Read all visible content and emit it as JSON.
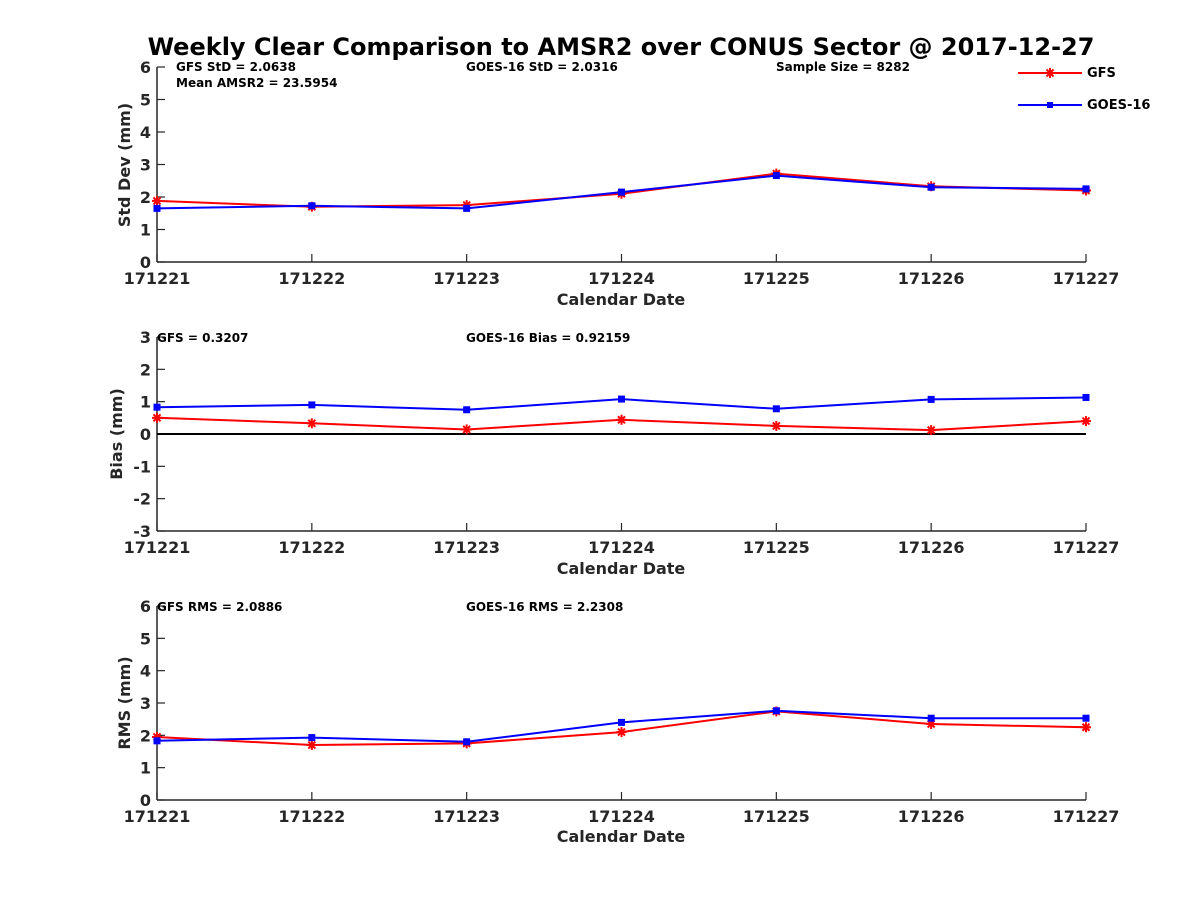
{
  "title": "Weekly Clear Comparison to AMSR2 over CONUS Sector @ 2017-12-27",
  "legend": [
    {
      "label": "GFS",
      "color": "#ff0000",
      "marker": "asterisk"
    },
    {
      "label": "GOES-16",
      "color": "#0000ff",
      "marker": "square"
    }
  ],
  "chart_data": [
    {
      "type": "line",
      "x": [
        "171221",
        "171222",
        "171223",
        "171224",
        "171225",
        "171226",
        "171227"
      ],
      "xlabel": "Calendar Date",
      "ylabel": "Std Dev (mm)",
      "ylim": [
        0,
        6
      ],
      "yticks": [
        0,
        1,
        2,
        3,
        4,
        5,
        6
      ],
      "zero_line": false,
      "annotations": [
        "GFS StD = 2.0638",
        "Mean AMSR2 = 23.5954",
        "GOES-16 StD = 2.0316",
        "Sample Size = 8282"
      ],
      "series": [
        {
          "name": "GFS",
          "color": "#ff0000",
          "marker": "asterisk",
          "values": [
            1.88,
            1.7,
            1.75,
            2.1,
            2.72,
            2.33,
            2.2
          ]
        },
        {
          "name": "GOES-16",
          "color": "#0000ff",
          "marker": "square",
          "values": [
            1.65,
            1.73,
            1.65,
            2.15,
            2.66,
            2.3,
            2.25
          ]
        }
      ]
    },
    {
      "type": "line",
      "x": [
        "171221",
        "171222",
        "171223",
        "171224",
        "171225",
        "171226",
        "171227"
      ],
      "xlabel": "Calendar Date",
      "ylabel": "Bias (mm)",
      "ylim": [
        -3,
        3
      ],
      "yticks": [
        -3,
        -2,
        -1,
        0,
        1,
        2,
        3
      ],
      "zero_line": true,
      "annotations": [
        "GFS = 0.3207",
        "GOES-16 Bias  = 0.92159"
      ],
      "series": [
        {
          "name": "GFS",
          "color": "#ff0000",
          "marker": "asterisk",
          "values": [
            0.5,
            0.33,
            0.14,
            0.44,
            0.25,
            0.12,
            0.4
          ]
        },
        {
          "name": "GOES-16",
          "color": "#0000ff",
          "marker": "square",
          "values": [
            0.83,
            0.9,
            0.75,
            1.08,
            0.78,
            1.07,
            1.13
          ]
        }
      ]
    },
    {
      "type": "line",
      "x": [
        "171221",
        "171222",
        "171223",
        "171224",
        "171225",
        "171226",
        "171227"
      ],
      "xlabel": "Calendar Date",
      "ylabel": "RMS (mm)",
      "ylim": [
        0,
        6
      ],
      "yticks": [
        0,
        1,
        2,
        3,
        4,
        5,
        6
      ],
      "zero_line": false,
      "annotations": [
        "GFS RMS = 2.0886",
        "GOES-16 RMS = 2.2308"
      ],
      "series": [
        {
          "name": "GFS",
          "color": "#ff0000",
          "marker": "asterisk",
          "values": [
            1.95,
            1.7,
            1.75,
            2.1,
            2.74,
            2.35,
            2.25
          ]
        },
        {
          "name": "GOES-16",
          "color": "#0000ff",
          "marker": "square",
          "values": [
            1.83,
            1.93,
            1.8,
            2.4,
            2.76,
            2.53,
            2.53
          ]
        }
      ]
    }
  ]
}
